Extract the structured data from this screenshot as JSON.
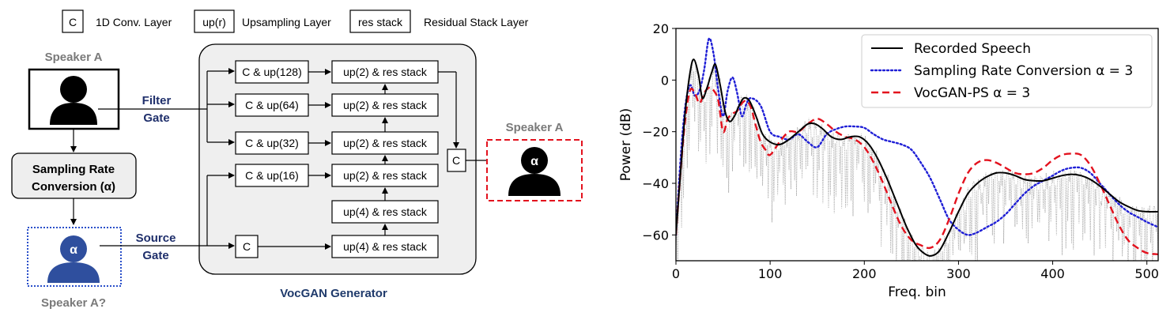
{
  "legend_top": {
    "conv_symbol": "C",
    "conv_label": "1D Conv. Layer",
    "up_symbol": "up(r)",
    "up_label": "Upsampling Layer",
    "res_symbol": "res stack",
    "res_label": "Residual Stack Layer"
  },
  "left_panel": {
    "speaker_top": "Speaker A",
    "filter_gate": [
      "Filter",
      "Gate"
    ],
    "src_box": [
      "Sampling Rate",
      "Conversion (α)"
    ],
    "source_gate": [
      "Source",
      "Gate"
    ],
    "alpha": "α",
    "speaker_bottom": "Speaker A?",
    "speaker_out": "Speaker A",
    "generator_label": "VocGAN Generator",
    "left_blocks": [
      "C & up(128)",
      "C & up(64)",
      "C & up(32)",
      "C & up(16)",
      "C"
    ],
    "right_blocks": [
      "up(2) & res stack",
      "up(2) & res stack",
      "up(2) & res stack",
      "up(2) & res stack",
      "up(4) & res stack",
      "up(4) & res stack"
    ],
    "out_conv": "C"
  },
  "chart_data": {
    "type": "line",
    "xlabel": "Freq. bin",
    "ylabel": "Power (dB)",
    "xlim": [
      0,
      512
    ],
    "ylim": [
      -70,
      20
    ],
    "xticks": [
      0,
      100,
      200,
      300,
      400,
      500
    ],
    "yticks": [
      20,
      0,
      -20,
      -40,
      -60
    ],
    "legend_position": "top-right",
    "series": [
      {
        "name": "Recorded Speech",
        "color": "#000000",
        "style": "solid",
        "x": [
          0,
          5,
          10,
          15,
          19,
          24,
          28,
          33,
          38,
          42,
          47,
          52,
          57,
          62,
          67,
          72,
          78,
          85,
          92,
          100,
          110,
          120,
          130,
          140,
          148,
          156,
          165,
          175,
          185,
          195,
          205,
          215,
          225,
          235,
          245,
          255,
          265,
          272,
          280,
          290,
          300,
          310,
          320,
          330,
          340,
          350,
          360,
          370,
          380,
          390,
          400,
          410,
          420,
          430,
          440,
          450,
          460,
          470,
          480,
          490,
          500,
          512
        ],
        "y": [
          -60,
          -35,
          -12,
          3,
          8,
          2,
          -7,
          -3,
          3,
          6,
          -2,
          -12,
          -16,
          -14,
          -10,
          -7,
          -8,
          -14,
          -21,
          -24,
          -25,
          -23,
          -20,
          -17,
          -17,
          -19,
          -22,
          -23,
          -22,
          -22,
          -25,
          -31,
          -39,
          -48,
          -57,
          -64,
          -67.5,
          -68,
          -66,
          -59,
          -51,
          -44,
          -40,
          -37.5,
          -36,
          -36,
          -37,
          -38.5,
          -39,
          -39,
          -38,
          -37,
          -36.5,
          -37,
          -38.5,
          -41,
          -44,
          -47,
          -49,
          -50.5,
          -51,
          -51
        ]
      },
      {
        "name": "Sampling Rate Conversion α = 3",
        "color": "#1f1fd6",
        "style": "dotted",
        "x": [
          0,
          5,
          10,
          15,
          20,
          25,
          30,
          35,
          40,
          45,
          50,
          55,
          60,
          65,
          70,
          75,
          80,
          90,
          100,
          110,
          120,
          130,
          140,
          150,
          160,
          170,
          180,
          190,
          200,
          210,
          220,
          230,
          240,
          250,
          260,
          270,
          280,
          290,
          300,
          310,
          320,
          330,
          340,
          350,
          360,
          370,
          380,
          390,
          400,
          410,
          420,
          430,
          440,
          450,
          460,
          470,
          480,
          490,
          500,
          512
        ],
        "y": [
          -60,
          -30,
          -10,
          -2,
          -6,
          -4,
          4,
          16,
          10,
          -4,
          -14,
          -4,
          1,
          -5,
          -14,
          -9,
          -7,
          -10,
          -20,
          -22,
          -23,
          -21,
          -24,
          -26,
          -21,
          -19,
          -18,
          -18,
          -18.5,
          -21,
          -23,
          -24,
          -25,
          -27,
          -32,
          -38,
          -46,
          -54,
          -58,
          -60,
          -59,
          -57,
          -55,
          -52,
          -48,
          -44,
          -41,
          -39,
          -37,
          -35,
          -34,
          -34,
          -36,
          -40,
          -44,
          -48,
          -51,
          -53,
          -55,
          -57
        ]
      },
      {
        "name": "VocGAN-PS α = 3",
        "color": "#e3121e",
        "style": "dashed",
        "x": [
          0,
          5,
          10,
          15,
          20,
          25,
          30,
          35,
          40,
          45,
          50,
          55,
          60,
          65,
          70,
          75,
          80,
          85,
          90,
          95,
          100,
          110,
          120,
          130,
          140,
          150,
          160,
          170,
          180,
          190,
          200,
          210,
          220,
          230,
          240,
          250,
          260,
          270,
          280,
          290,
          300,
          310,
          320,
          330,
          340,
          350,
          360,
          370,
          380,
          390,
          400,
          410,
          420,
          430,
          440,
          450,
          460,
          470,
          480,
          490,
          500,
          512
        ],
        "y": [
          -60,
          -35,
          -15,
          -4,
          -5,
          -9,
          -5,
          -3,
          -4,
          -8,
          -20,
          -15,
          -13,
          -12,
          -9,
          -8,
          -11,
          -18,
          -24,
          -27,
          -29,
          -24,
          -20,
          -20,
          -17,
          -15,
          -17,
          -20,
          -22,
          -23,
          -26,
          -32,
          -40,
          -49,
          -57,
          -62,
          -64,
          -65,
          -62,
          -54,
          -44,
          -36,
          -32,
          -31,
          -32,
          -34,
          -36,
          -36.5,
          -36,
          -34,
          -31,
          -29,
          -28.5,
          -29,
          -33,
          -40,
          -48,
          -56,
          -62,
          -65,
          -67,
          -67.5
        ]
      }
    ],
    "background_gray_note": ""
  }
}
